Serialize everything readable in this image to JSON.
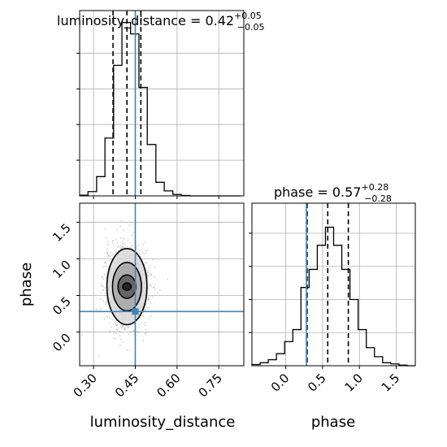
{
  "chart_data": [
    {
      "type": "histogram",
      "panel": "luminosity_distance marginal",
      "title": "luminosity_distance = 0.42",
      "title_plus": "+0.05",
      "title_minus": "−0.05",
      "x_range": [
        0.25,
        0.84
      ],
      "bin_edges": [
        0.25,
        0.28,
        0.311,
        0.341,
        0.372,
        0.402,
        0.433,
        0.463,
        0.493,
        0.524,
        0.554,
        0.585,
        0.615,
        0.646,
        0.676,
        0.707,
        0.737,
        0.768,
        0.798,
        0.829
      ],
      "counts": [
        1,
        6,
        27,
        81,
        183,
        243,
        227,
        152,
        72,
        19,
        7,
        2,
        0.5,
        0,
        0,
        0,
        0,
        0,
        0
      ],
      "quantile_lines": [
        0.37,
        0.42,
        0.47
      ],
      "truth": 0.45,
      "grid": true,
      "color_truth": "#4682b4",
      "color_hist": "#000000"
    },
    {
      "type": "heatmap",
      "panel": "2D posterior luminosity_distance vs phase",
      "xlabel": "luminosity_distance",
      "ylabel": "phase",
      "x_range": [
        0.25,
        0.84
      ],
      "y_range": [
        -0.46,
        1.76
      ],
      "x_ticks": [
        "0.30",
        "0.45",
        "0.60",
        "0.75"
      ],
      "x_tick_values": [
        0.3,
        0.45,
        0.6,
        0.75
      ],
      "y_ticks": [
        "0.0",
        "0.5",
        "1.0",
        "1.5"
      ],
      "y_tick_values": [
        0.0,
        0.5,
        1.0,
        1.5
      ],
      "center": [
        0.42,
        0.62
      ],
      "contour_half_widths": [
        [
          0.015,
          0.05
        ],
        [
          0.032,
          0.16
        ],
        [
          0.052,
          0.33
        ],
        [
          0.072,
          0.52
        ]
      ],
      "sample_spread": [
        0.05,
        0.32
      ],
      "truth": [
        0.45,
        0.28
      ],
      "grid": true,
      "color_truth": "#4682b4"
    },
    {
      "type": "histogram",
      "panel": "phase marginal",
      "title": "phase = 0.57",
      "title_plus": "+0.28",
      "title_minus": "−0.28",
      "x_range": [
        -0.46,
        1.76
      ],
      "x_ticks": [
        "0.0",
        "0.5",
        "1.0",
        "1.5"
      ],
      "x_tick_values": [
        0.0,
        0.5,
        1.0,
        1.5
      ],
      "xlabel": "phase",
      "bin_edges": [
        -0.46,
        -0.349,
        -0.238,
        -0.127,
        -0.016,
        0.095,
        0.206,
        0.317,
        0.428,
        0.539,
        0.65,
        0.761,
        0.872,
        0.983,
        1.094,
        1.205,
        1.316,
        1.427,
        1.538,
        1.649,
        1.76
      ],
      "counts": [
        2,
        5,
        10,
        20,
        40,
        60,
        130,
        160,
        200,
        230,
        200,
        160,
        110,
        60,
        30,
        15,
        5,
        3,
        1,
        0
      ],
      "quantile_lines": [
        0.29,
        0.57,
        0.85
      ],
      "truth": 0.28,
      "grid": true,
      "color_truth": "#4682b4",
      "color_hist": "#000000"
    }
  ]
}
